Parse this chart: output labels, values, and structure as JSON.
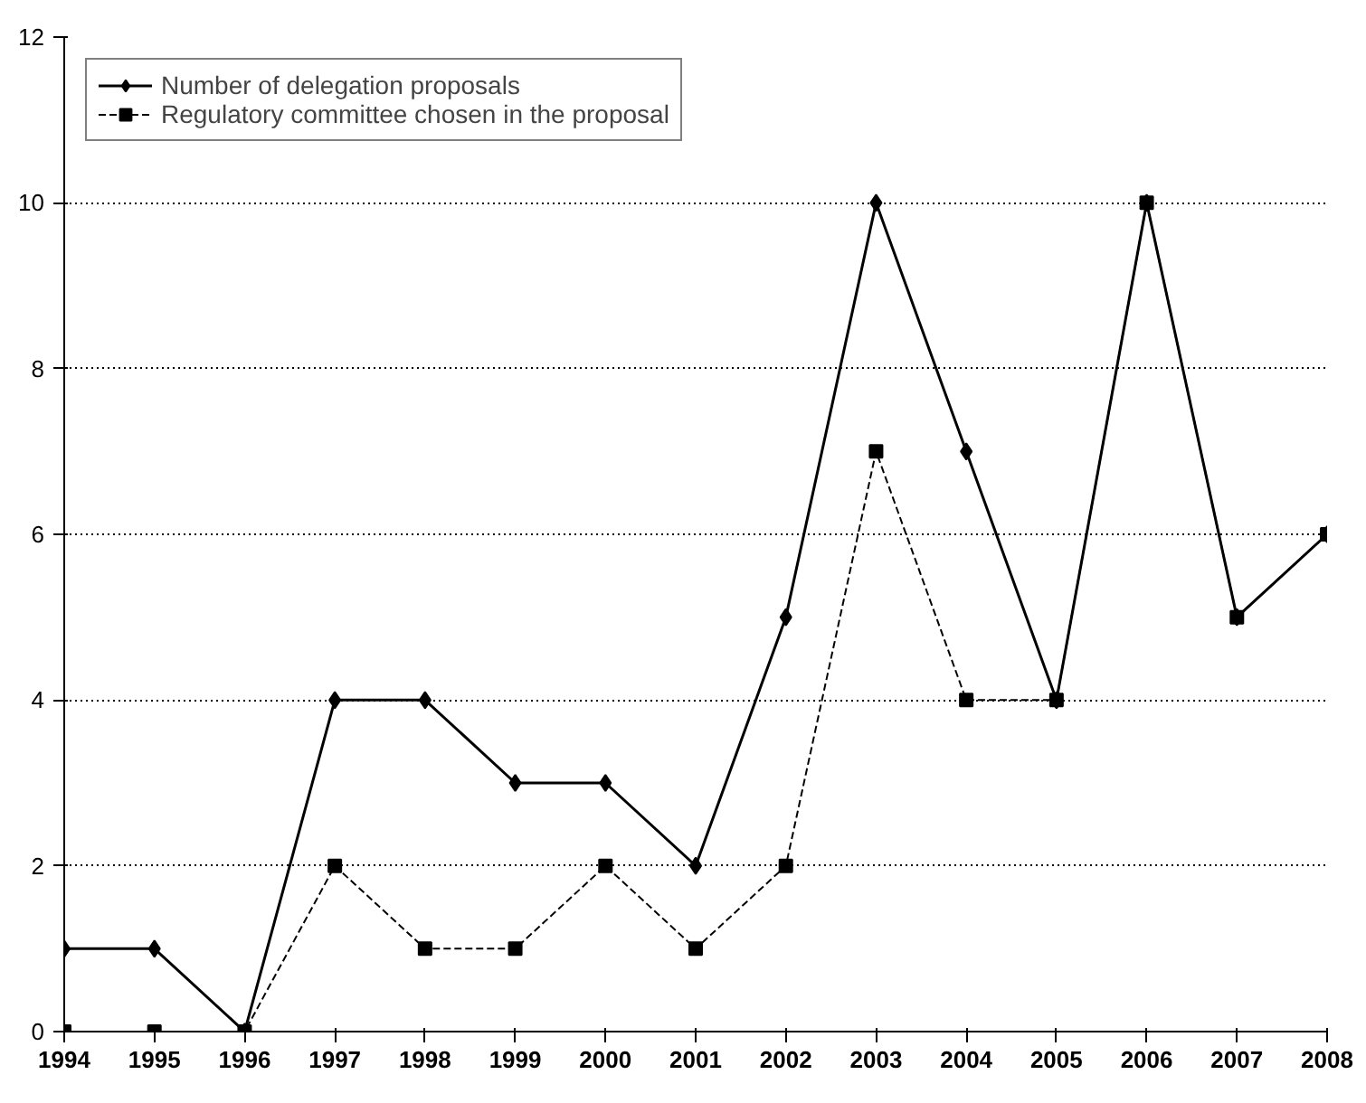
{
  "chart_data": {
    "type": "line",
    "x": [
      1994,
      1995,
      1996,
      1997,
      1998,
      1999,
      2000,
      2001,
      2002,
      2003,
      2004,
      2005,
      2006,
      2007,
      2008
    ],
    "xlim": [
      1994,
      2008
    ],
    "xticks": [
      1994,
      1995,
      1996,
      1997,
      1998,
      1999,
      2000,
      2001,
      2002,
      2003,
      2004,
      2005,
      2006,
      2007,
      2008
    ],
    "ylim": [
      0,
      12
    ],
    "yticks": [
      0,
      2,
      4,
      6,
      8,
      10,
      12
    ],
    "grid": "y",
    "legend": "top left",
    "series": [
      {
        "name": "Number of delegation proposals",
        "color": "#000000",
        "marker": "diamond",
        "line_style": "solid",
        "values": [
          1,
          1,
          0,
          4,
          4,
          3,
          3,
          2,
          5,
          10,
          7,
          4,
          10,
          5,
          6
        ]
      },
      {
        "name": "Regulatory committee chosen in the proposal",
        "color": "#000000",
        "marker": "square",
        "line_style": "dashed",
        "values": [
          0,
          0,
          0,
          2,
          1,
          1,
          2,
          1,
          2,
          7,
          4,
          4,
          10,
          5,
          6
        ]
      }
    ]
  }
}
